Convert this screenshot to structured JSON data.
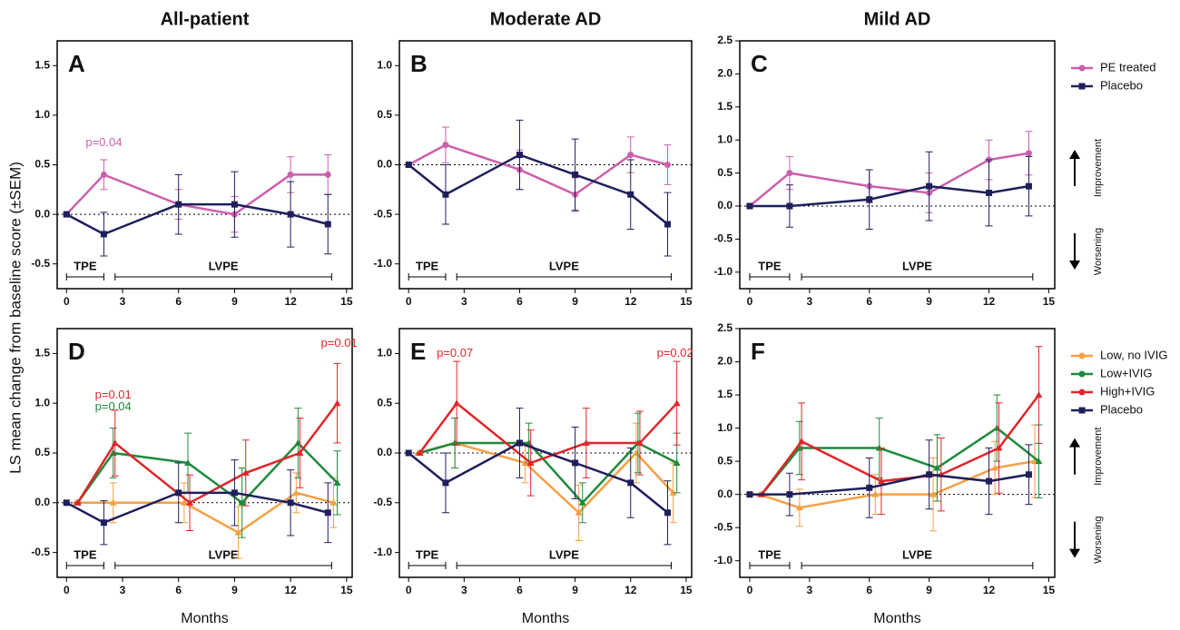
{
  "y_label": "LS mean change from baseline score (±SEM)",
  "chart_data": [
    {
      "type": "line",
      "title": "All-patient",
      "panel_label": "A",
      "xlim": [
        -0.5,
        15.3
      ],
      "xticks": [
        0,
        3,
        6,
        9,
        12,
        15
      ],
      "ylim": [
        -0.75,
        1.75
      ],
      "yticks": [
        {
          "value": -0.5,
          "label": "-0.5"
        },
        {
          "value": 0,
          "label": "0.0"
        },
        0.5,
        {
          "value": 1,
          "label": "1.0"
        },
        1.5
      ],
      "phase_labels": [
        "TPE",
        "LVPE"
      ],
      "annotations": [
        {
          "text": "p=0.04",
          "color": "#cc5fac"
        }
      ],
      "series": [
        {
          "name": "PE treated",
          "color": "#cc5fac",
          "marker": "circle",
          "x": [
            0,
            2,
            6,
            9,
            12,
            14
          ],
          "values": [
            0,
            0.4,
            0.1,
            0,
            0.4,
            0.4
          ],
          "errors": [
            0,
            0.15,
            0.15,
            0.18,
            0.18,
            0.2
          ]
        },
        {
          "name": "Placebo",
          "color": "#1f1f5c",
          "marker": "square",
          "x": [
            0,
            2,
            6,
            9,
            12,
            14
          ],
          "values": [
            0,
            -0.2,
            0.1,
            0.1,
            0,
            -0.1
          ],
          "errors": [
            0,
            0.22,
            0.3,
            0.33,
            0.33,
            0.3
          ]
        }
      ]
    },
    {
      "type": "line",
      "title": "Moderate AD",
      "panel_label": "B",
      "xlim": [
        -0.5,
        15.3
      ],
      "xticks": [
        0,
        3,
        6,
        9,
        12,
        15
      ],
      "ylim": [
        -1.25,
        1.25
      ],
      "yticks": [
        {
          "value": -1,
          "label": "-1.0"
        },
        -0.5,
        {
          "value": 0,
          "label": "0.0"
        },
        0.5,
        {
          "value": 1,
          "label": "1.0"
        }
      ],
      "phase_labels": [
        "TPE",
        "LVPE"
      ],
      "series": [
        {
          "name": "PE treated",
          "color": "#cc5fac",
          "marker": "circle",
          "x": [
            0,
            2,
            6,
            9,
            12,
            14
          ],
          "values": [
            0,
            0.2,
            -0.05,
            -0.3,
            0.1,
            0
          ],
          "errors": [
            0,
            0.18,
            0.2,
            0.17,
            0.18,
            0.2
          ]
        },
        {
          "name": "Placebo",
          "color": "#1f1f5c",
          "marker": "square",
          "x": [
            0,
            2,
            6,
            9,
            12,
            14
          ],
          "values": [
            0,
            -0.3,
            0.1,
            -0.1,
            -0.3,
            -0.6
          ],
          "errors": [
            0,
            0.3,
            0.35,
            0.36,
            0.35,
            0.32
          ]
        }
      ]
    },
    {
      "type": "line",
      "title": "Mild AD",
      "panel_label": "C",
      "legend": "right",
      "xlim": [
        -0.5,
        15.3
      ],
      "xticks": [
        0,
        3,
        6,
        9,
        12,
        15
      ],
      "ylim": [
        -1.25,
        2.5
      ],
      "yticks": [
        {
          "value": -1,
          "label": "-1.0"
        },
        -0.5,
        {
          "value": 0,
          "label": "0.0"
        },
        0.5,
        {
          "value": 1,
          "label": "1.0"
        },
        1.5,
        {
          "value": 2,
          "label": "2.0"
        },
        2.5
      ],
      "phase_labels": [
        "TPE",
        "LVPE"
      ],
      "side_labels": [
        "Improvement",
        "Worsening"
      ],
      "series": [
        {
          "name": "PE treated",
          "color": "#cc5fac",
          "marker": "circle",
          "x": [
            0,
            2,
            6,
            9,
            12,
            14
          ],
          "values": [
            0,
            0.5,
            0.3,
            0.2,
            0.7,
            0.8
          ],
          "errors": [
            0,
            0.25,
            0.25,
            0.3,
            0.3,
            0.33
          ]
        },
        {
          "name": "Placebo",
          "color": "#1f1f5c",
          "marker": "square",
          "x": [
            0,
            2,
            6,
            9,
            12,
            14
          ],
          "values": [
            0,
            0,
            0.1,
            0.3,
            0.2,
            0.3
          ],
          "errors": [
            0,
            0.32,
            0.45,
            0.52,
            0.5,
            0.45
          ]
        }
      ]
    },
    {
      "type": "line",
      "panel_label": "D",
      "x_label": "Months",
      "xlim": [
        -0.5,
        15.3
      ],
      "xticks": [
        0,
        3,
        6,
        9,
        12,
        15
      ],
      "ylim": [
        -0.75,
        1.75
      ],
      "yticks": [
        {
          "value": -0.5,
          "label": "-0.5"
        },
        {
          "value": 0,
          "label": "0.0"
        },
        0.5,
        {
          "value": 1,
          "label": "1.0"
        },
        1.5
      ],
      "phase_labels": [
        "TPE",
        "LVPE"
      ],
      "annotations": [
        {
          "text": "p=0.01",
          "color": "#e0262a"
        },
        {
          "text": "p=0.04",
          "color": "#1f8a3c"
        },
        {
          "text": "p=0.01",
          "color": "#e0262a"
        }
      ],
      "series": [
        {
          "name": "Low, no IVIG",
          "color": "#f5a044",
          "marker": "triangle",
          "x": [
            0.5,
            2.5,
            6.3,
            9.2,
            12.3,
            14.3
          ],
          "values": [
            0,
            0,
            0,
            -0.3,
            0.1,
            0
          ],
          "errors": [
            0,
            0.2,
            0.2,
            0.26,
            0.2,
            0.25
          ]
        },
        {
          "name": "Low+IVIG",
          "color": "#1f8a3c",
          "marker": "triangle",
          "x": [
            0.6,
            2.5,
            6.5,
            9.4,
            12.4,
            14.5
          ],
          "values": [
            0,
            0.5,
            0.4,
            0,
            0.6,
            0.2
          ],
          "errors": [
            0,
            0.25,
            0.3,
            0.35,
            0.35,
            0.32
          ]
        },
        {
          "name": "High+IVIG",
          "color": "#e0262a",
          "marker": "triangle",
          "x": [
            0.6,
            2.6,
            6.6,
            9.6,
            12.5,
            14.5
          ],
          "values": [
            0,
            0.6,
            0,
            0.3,
            0.5,
            1
          ],
          "errors": [
            0,
            0.33,
            0.28,
            0.33,
            0.35,
            0.4
          ]
        },
        {
          "name": "Placebo",
          "color": "#1f1f5c",
          "marker": "square",
          "x": [
            0,
            2,
            6,
            9,
            12,
            14
          ],
          "values": [
            0,
            -0.2,
            0.1,
            0.1,
            0,
            -0.1
          ],
          "errors": [
            0,
            0.22,
            0.3,
            0.33,
            0.33,
            0.3
          ]
        }
      ]
    },
    {
      "type": "line",
      "panel_label": "E",
      "x_label": "Months",
      "xlim": [
        -0.5,
        15.3
      ],
      "xticks": [
        0,
        3,
        6,
        9,
        12,
        15
      ],
      "ylim": [
        -1.25,
        1.25
      ],
      "yticks": [
        {
          "value": -1,
          "label": "-1.0"
        },
        -0.5,
        {
          "value": 0,
          "label": "0.0"
        },
        0.5,
        {
          "value": 1,
          "label": "1.0"
        }
      ],
      "phase_labels": [
        "TPE",
        "LVPE"
      ],
      "annotations": [
        {
          "text": "p=0.07",
          "color": "#e0262a"
        },
        {
          "text": "p=0.02",
          "color": "#e0262a"
        }
      ],
      "series": [
        {
          "name": "Low, no IVIG",
          "color": "#f5a044",
          "marker": "triangle",
          "x": [
            0.5,
            2.5,
            6.3,
            9.2,
            12.3,
            14.3
          ],
          "values": [
            0,
            0.1,
            -0.1,
            -0.6,
            0,
            -0.4
          ],
          "errors": [
            0,
            0.25,
            0.2,
            0.28,
            0.3,
            0.3
          ]
        },
        {
          "name": "Low+IVIG",
          "color": "#1f8a3c",
          "marker": "triangle",
          "x": [
            0.6,
            2.5,
            6.5,
            9.4,
            12.4,
            14.5
          ],
          "values": [
            0,
            0.1,
            0.1,
            -0.5,
            0.1,
            -0.1
          ],
          "errors": [
            0,
            0.25,
            0.2,
            0.2,
            0.3,
            0.3
          ]
        },
        {
          "name": "High+IVIG",
          "color": "#e0262a",
          "marker": "triangle",
          "x": [
            0.6,
            2.6,
            6.6,
            9.6,
            12.5,
            14.5
          ],
          "values": [
            0,
            0.5,
            -0.1,
            0.1,
            0.1,
            0.5
          ],
          "errors": [
            0,
            0.42,
            0.33,
            0.35,
            0.32,
            0.42
          ]
        },
        {
          "name": "Placebo",
          "color": "#1f1f5c",
          "marker": "square",
          "x": [
            0,
            2,
            6,
            9,
            12,
            14
          ],
          "values": [
            0,
            -0.3,
            0.1,
            -0.1,
            -0.3,
            -0.6
          ],
          "errors": [
            0,
            0.3,
            0.35,
            0.36,
            0.35,
            0.32
          ]
        }
      ]
    },
    {
      "type": "line",
      "panel_label": "F",
      "x_label": "Months",
      "legend": "right",
      "xlim": [
        -0.5,
        15.3
      ],
      "xticks": [
        0,
        3,
        6,
        9,
        12,
        15
      ],
      "ylim": [
        -1.25,
        2.5
      ],
      "yticks": [
        {
          "value": -1,
          "label": "-1.0"
        },
        -0.5,
        {
          "value": 0,
          "label": "0.0"
        },
        0.5,
        {
          "value": 1,
          "label": "1.0"
        },
        1.5,
        {
          "value": 2,
          "label": "2.0"
        },
        2.5
      ],
      "phase_labels": [
        "TPE",
        "LVPE"
      ],
      "side_labels": [
        "Improvement",
        "Worsening"
      ],
      "series": [
        {
          "name": "Low, no IVIG",
          "color": "#f5a044",
          "marker": "triangle",
          "x": [
            0.5,
            2.5,
            6.3,
            9.2,
            12.3,
            14.3
          ],
          "values": [
            0,
            -0.2,
            0,
            0,
            0.4,
            0.5
          ],
          "errors": [
            0,
            0.28,
            0.3,
            0.55,
            0.4,
            0.55
          ]
        },
        {
          "name": "Low+IVIG",
          "color": "#1f8a3c",
          "marker": "triangle",
          "x": [
            0.6,
            2.5,
            6.5,
            9.4,
            12.4,
            14.5
          ],
          "values": [
            0,
            0.7,
            0.7,
            0.4,
            1,
            0.5
          ],
          "errors": [
            0,
            0.4,
            0.45,
            0.5,
            0.5,
            0.55
          ]
        },
        {
          "name": "High+IVIG",
          "color": "#e0262a",
          "marker": "triangle",
          "x": [
            0.6,
            2.6,
            6.6,
            9.6,
            12.5,
            14.5
          ],
          "values": [
            0,
            0.8,
            0.2,
            0.3,
            0.7,
            1.5
          ],
          "errors": [
            0,
            0.58,
            0.5,
            0.55,
            0.68,
            0.73
          ]
        },
        {
          "name": "Placebo",
          "color": "#1f1f5c",
          "marker": "square",
          "x": [
            0,
            2,
            6,
            9,
            12,
            14
          ],
          "values": [
            0,
            0,
            0.1,
            0.3,
            0.2,
            0.3
          ],
          "errors": [
            0,
            0.32,
            0.45,
            0.52,
            0.5,
            0.45
          ]
        }
      ]
    }
  ]
}
